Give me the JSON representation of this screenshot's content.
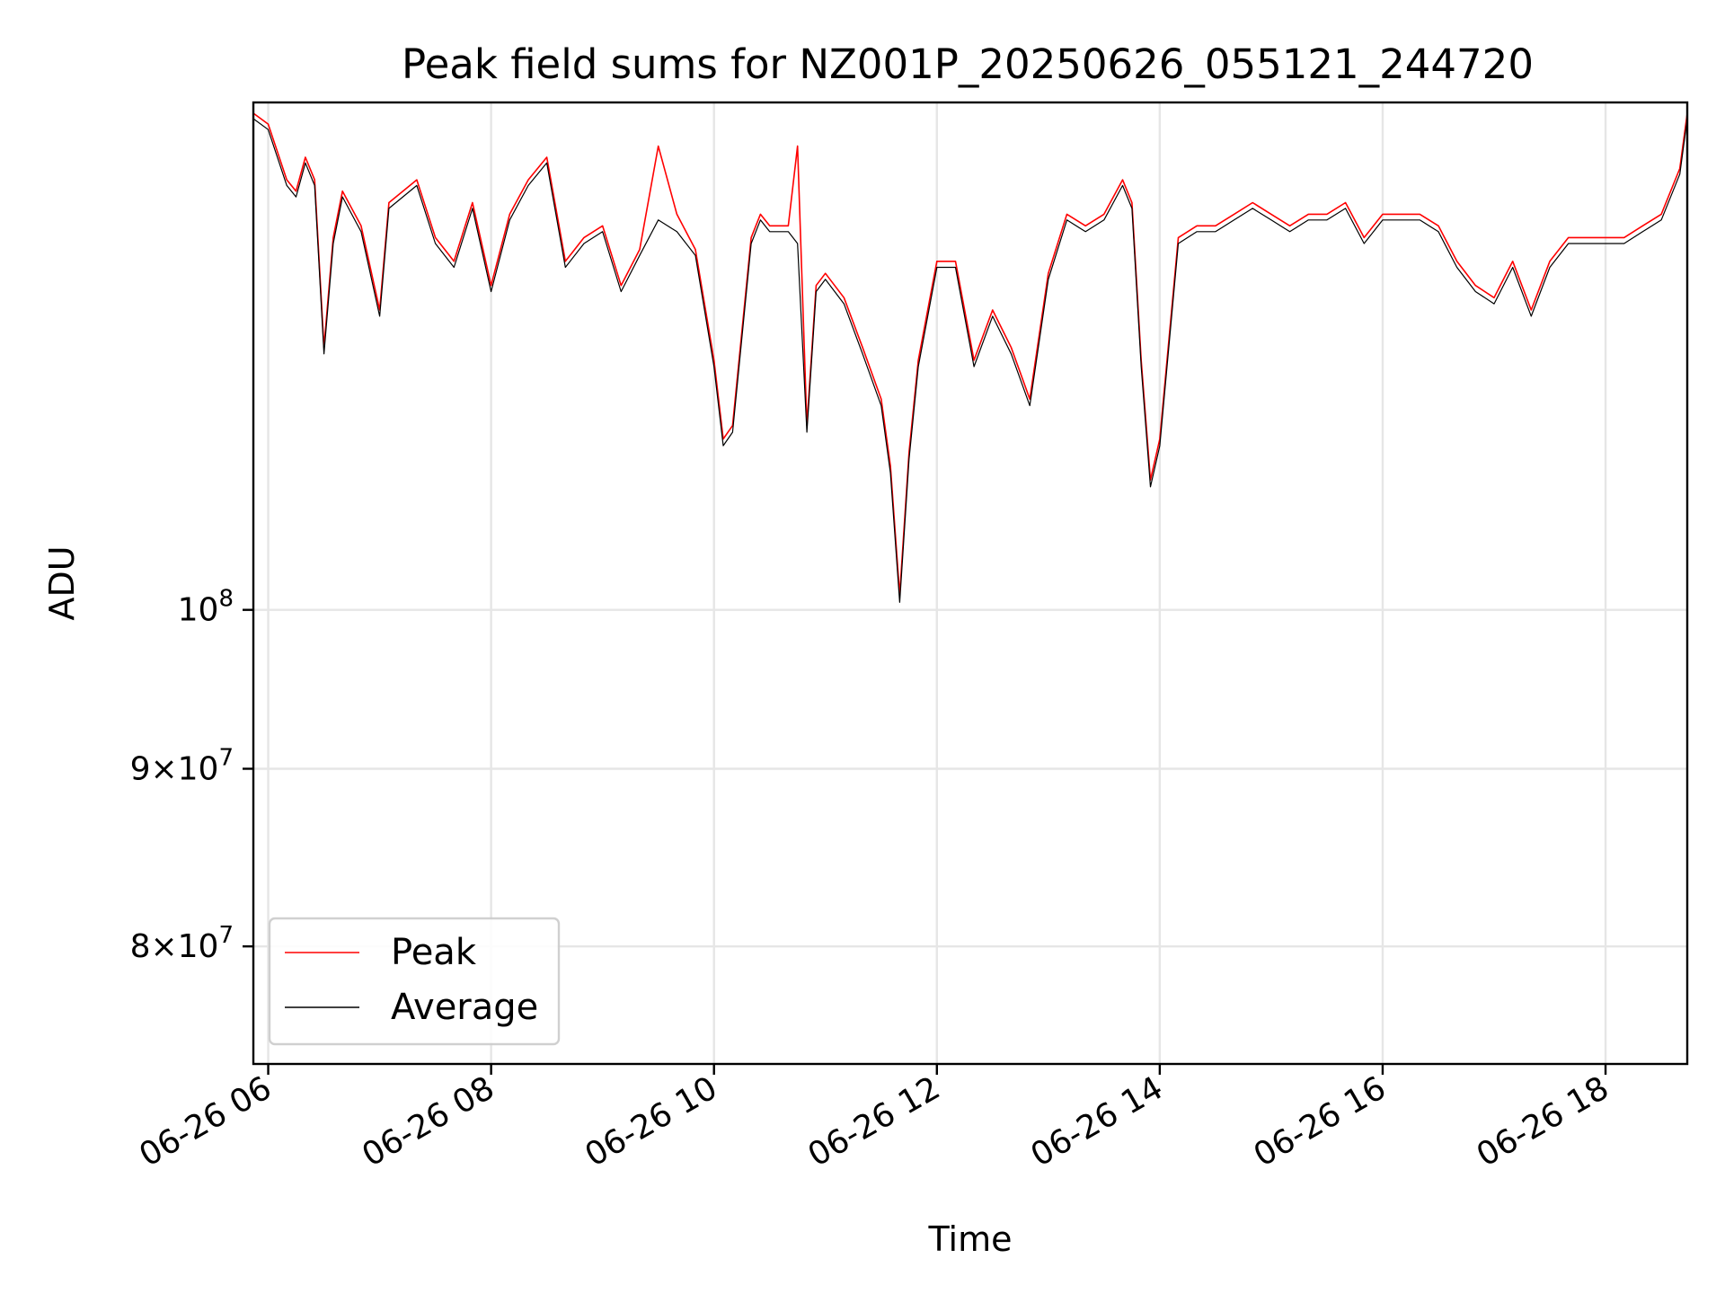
{
  "chart_data": {
    "type": "line",
    "title": "Peak field sums for NZ001P_20250626_055121_244720",
    "xlabel": "Time",
    "ylabel": "ADU",
    "y_scale": "log",
    "ylim": [
      74000000,
      140000000
    ],
    "xlim": [
      "06-26 05:52",
      "06-26 18:44"
    ],
    "grid": true,
    "legend_position": "lower-left",
    "x_ticks": [
      "06-26 06",
      "06-26 08",
      "06-26 10",
      "06-26 12",
      "06-26 14",
      "06-26 16",
      "06-26 18"
    ],
    "y_ticks": [
      {
        "value": 80000000,
        "coef": "8",
        "exp": "7"
      },
      {
        "value": 90000000,
        "coef": "9",
        "exp": "7"
      },
      {
        "value": 100000000,
        "coef": "",
        "exp": "8"
      }
    ],
    "x": [
      "05:52",
      "06:00",
      "06:10",
      "06:15",
      "06:20",
      "06:25",
      "06:30",
      "06:35",
      "06:40",
      "06:50",
      "07:00",
      "07:05",
      "07:20",
      "07:30",
      "07:40",
      "07:50",
      "08:00",
      "08:10",
      "08:20",
      "08:30",
      "08:40",
      "08:50",
      "09:00",
      "09:10",
      "09:20",
      "09:30",
      "09:40",
      "09:50",
      "10:00",
      "10:05",
      "10:10",
      "10:20",
      "10:25",
      "10:30",
      "10:40",
      "10:45",
      "10:50",
      "10:55",
      "11:00",
      "11:10",
      "11:20",
      "11:30",
      "11:35",
      "11:40",
      "11:45",
      "11:50",
      "12:00",
      "12:10",
      "12:20",
      "12:30",
      "12:40",
      "12:50",
      "13:00",
      "13:10",
      "13:20",
      "13:30",
      "13:40",
      "13:45",
      "13:50",
      "13:55",
      "14:00",
      "14:10",
      "14:20",
      "14:30",
      "14:40",
      "14:50",
      "15:00",
      "15:10",
      "15:20",
      "15:30",
      "15:40",
      "15:50",
      "16:00",
      "16:10",
      "16:20",
      "16:30",
      "16:40",
      "16:50",
      "17:00",
      "17:10",
      "17:20",
      "17:30",
      "17:40",
      "17:50",
      "18:00",
      "18:10",
      "18:20",
      "18:30",
      "18:40",
      "18:44"
    ],
    "series": [
      {
        "name": "Peak",
        "color": "#ff0000",
        "values": [
          139000000,
          138000000,
          133000000,
          132000000,
          135000000,
          133000000,
          119000000,
          128000000,
          132000000,
          129000000,
          122000000,
          131000000,
          133000000,
          128000000,
          126000000,
          131000000,
          124000000,
          130000000,
          133000000,
          135000000,
          126000000,
          128000000,
          129000000,
          124000000,
          127000000,
          136000000,
          130000000,
          127000000,
          118000000,
          112000000,
          113000000,
          128000000,
          130000000,
          129000000,
          129000000,
          136000000,
          113000000,
          124000000,
          125000000,
          123000000,
          119000000,
          115000000,
          110000000,
          101000000,
          111000000,
          118000000,
          126000000,
          126000000,
          118000000,
          122000000,
          119000000,
          115000000,
          125000000,
          130000000,
          129000000,
          130000000,
          133000000,
          131000000,
          118000000,
          109000000,
          112000000,
          128000000,
          129000000,
          129000000,
          130000000,
          131000000,
          130000000,
          129000000,
          130000000,
          130000000,
          131000000,
          128000000,
          130000000,
          130000000,
          130000000,
          129000000,
          126000000,
          124000000,
          123000000,
          126000000,
          122000000,
          126000000,
          128000000,
          128000000,
          128000000,
          128000000,
          129000000,
          130000000,
          134000000,
          139000000
        ]
      },
      {
        "name": "Average",
        "color": "#000000",
        "values": [
          138500000,
          137500000,
          132500000,
          131500000,
          134500000,
          132500000,
          118500000,
          127500000,
          131500000,
          128500000,
          121500000,
          130500000,
          132500000,
          127500000,
          125500000,
          130500000,
          123500000,
          129500000,
          132500000,
          134500000,
          125500000,
          127500000,
          128500000,
          123500000,
          126500000,
          129500000,
          128500000,
          126500000,
          117500000,
          111500000,
          112500000,
          127500000,
          129500000,
          128500000,
          128500000,
          127500000,
          112500000,
          123500000,
          124500000,
          122500000,
          118500000,
          114500000,
          109500000,
          100500000,
          110500000,
          117500000,
          125500000,
          125500000,
          117500000,
          121500000,
          118500000,
          114500000,
          124500000,
          129500000,
          128500000,
          129500000,
          132500000,
          130500000,
          117500000,
          108500000,
          111500000,
          127500000,
          128500000,
          128500000,
          129500000,
          130500000,
          129500000,
          128500000,
          129500000,
          129500000,
          130500000,
          127500000,
          129500000,
          129500000,
          129500000,
          128500000,
          125500000,
          123500000,
          122500000,
          125500000,
          121500000,
          125500000,
          127500000,
          127500000,
          127500000,
          127500000,
          128500000,
          129500000,
          133500000,
          138500000
        ]
      }
    ]
  }
}
